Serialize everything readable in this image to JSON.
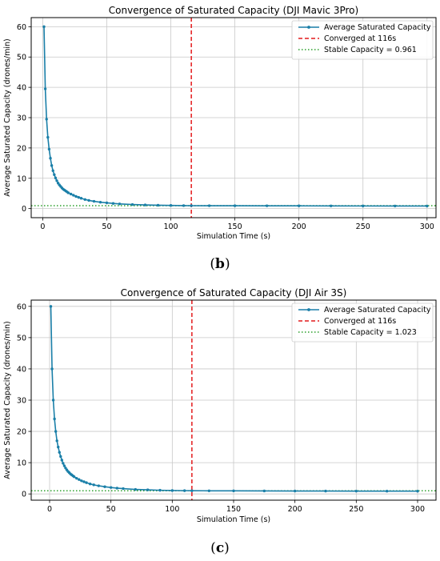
{
  "colors": {
    "series": "#1a7fa8",
    "converged": "#e41a1c",
    "stable": "#2ca02c",
    "grid": "#c8c8c8",
    "frame": "#000000"
  },
  "chart_data": [
    {
      "type": "line",
      "panel_label": "b",
      "title": "Convergence of Saturated Capacity (DJI Mavic 3Pro)",
      "xlabel": "Simulation Time (s)",
      "ylabel": "Average Saturated Capacity (drones/min)",
      "xlim": [
        -9,
        307
      ],
      "ylim": [
        -3,
        63
      ],
      "xticks": [
        0,
        50,
        100,
        150,
        200,
        250,
        300
      ],
      "yticks": [
        0,
        10,
        20,
        30,
        40,
        50,
        60
      ],
      "grid": true,
      "legend_position": "top-right",
      "legend": [
        "Average Saturated Capacity",
        "Converged at 116s",
        "Stable Capacity = 0.961"
      ],
      "converged_x": 116,
      "stable_y": 0.961,
      "series": [
        {
          "name": "Average Saturated Capacity",
          "x": [
            1,
            2,
            3,
            4,
            5,
            6,
            7,
            8,
            9,
            10,
            11,
            12,
            13,
            14,
            15,
            16,
            17,
            18,
            19,
            20,
            22,
            24,
            26,
            28,
            30,
            33,
            36,
            40,
            45,
            50,
            55,
            60,
            70,
            80,
            90,
            100,
            110,
            116,
            130,
            150,
            175,
            200,
            225,
            250,
            275,
            300
          ],
          "y": [
            60,
            39.5,
            29.5,
            23.5,
            19.6,
            16.6,
            14.2,
            12.5,
            11.2,
            10.1,
            9.2,
            8.4,
            7.8,
            7.3,
            6.8,
            6.4,
            6.1,
            5.8,
            5.5,
            5.2,
            4.8,
            4.4,
            4.0,
            3.7,
            3.4,
            3.0,
            2.7,
            2.4,
            2.1,
            1.9,
            1.7,
            1.55,
            1.35,
            1.2,
            1.1,
            1.03,
            0.98,
            0.96,
            0.95,
            0.94,
            0.92,
            0.9,
            0.88,
            0.86,
            0.85,
            0.84
          ]
        }
      ]
    },
    {
      "type": "line",
      "panel_label": "c",
      "title": "Convergence of Saturated Capacity (DJI Air 3S)",
      "xlabel": "Simulation Time (s)",
      "ylabel": "Average Saturated Capacity (drones/min)",
      "xlim": [
        -15,
        315
      ],
      "ylim": [
        -2,
        62
      ],
      "xticks": [
        0,
        50,
        100,
        150,
        200,
        250,
        300
      ],
      "yticks": [
        0,
        10,
        20,
        30,
        40,
        50,
        60
      ],
      "grid": true,
      "legend_position": "top-right",
      "legend": [
        "Average Saturated Capacity",
        "Converged at 116s",
        "Stable Capacity = 1.023"
      ],
      "converged_x": 116,
      "stable_y": 1.023,
      "series": [
        {
          "name": "Average Saturated Capacity",
          "x": [
            1,
            2,
            3,
            4,
            5,
            6,
            7,
            8,
            9,
            10,
            11,
            12,
            13,
            14,
            15,
            16,
            17,
            18,
            19,
            20,
            22,
            24,
            26,
            28,
            30,
            33,
            36,
            40,
            45,
            50,
            55,
            60,
            70,
            80,
            90,
            100,
            110,
            116,
            130,
            150,
            175,
            200,
            225,
            250,
            275,
            300
          ],
          "y": [
            60,
            40,
            30,
            24,
            20,
            17,
            15,
            13.3,
            12,
            10.8,
            9.8,
            9,
            8.3,
            7.7,
            7.2,
            6.8,
            6.4,
            6.1,
            5.8,
            5.5,
            5.0,
            4.6,
            4.2,
            3.9,
            3.6,
            3.2,
            2.9,
            2.6,
            2.3,
            2.05,
            1.85,
            1.7,
            1.45,
            1.3,
            1.17,
            1.08,
            1.04,
            1.02,
            1.0,
            0.98,
            0.96,
            0.94,
            0.92,
            0.9,
            0.89,
            0.88
          ]
        }
      ]
    }
  ]
}
